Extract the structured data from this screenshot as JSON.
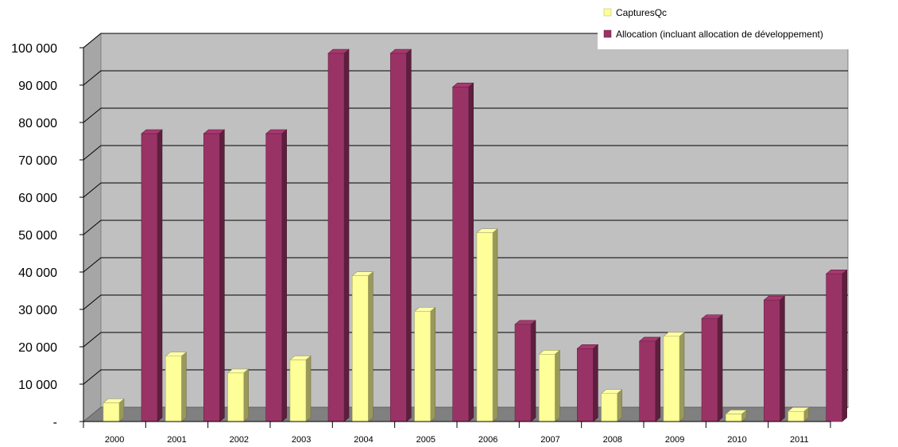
{
  "chart_data": {
    "type": "bar",
    "title": "",
    "xlabel": "",
    "ylabel": "",
    "categories": [
      "2000",
      "2001",
      "2002",
      "2003",
      "2004",
      "2005",
      "2006",
      "2007",
      "2008",
      "2009",
      "2010",
      "2011"
    ],
    "series": [
      {
        "name": "CapturesQc",
        "color": "#FFFF99",
        "values": [
          5000,
          17500,
          13000,
          16500,
          39000,
          29500,
          50500,
          18000,
          7500,
          22800,
          2000,
          2700
        ]
      },
      {
        "name": "Allocation (incluant allocation de développement)",
        "color": "#993366",
        "values": [
          77000,
          77000,
          77000,
          98500,
          98500,
          89500,
          26000,
          19500,
          21500,
          27500,
          32500,
          39500
        ]
      }
    ],
    "ylim": [
      0,
      100000
    ],
    "yticks": [
      0,
      10000,
      20000,
      30000,
      40000,
      50000,
      60000,
      70000,
      80000,
      90000,
      100000
    ],
    "ytick_labels": [
      "-",
      "10 000",
      "20 000",
      "30 000",
      "40 000",
      "50 000",
      "60 000",
      "70 000",
      "80 000",
      "90 000",
      "100 000"
    ],
    "grid": true,
    "legend_position": "top-right",
    "style": "3d-clustered-column",
    "wall_color": "#C0C0C0"
  }
}
